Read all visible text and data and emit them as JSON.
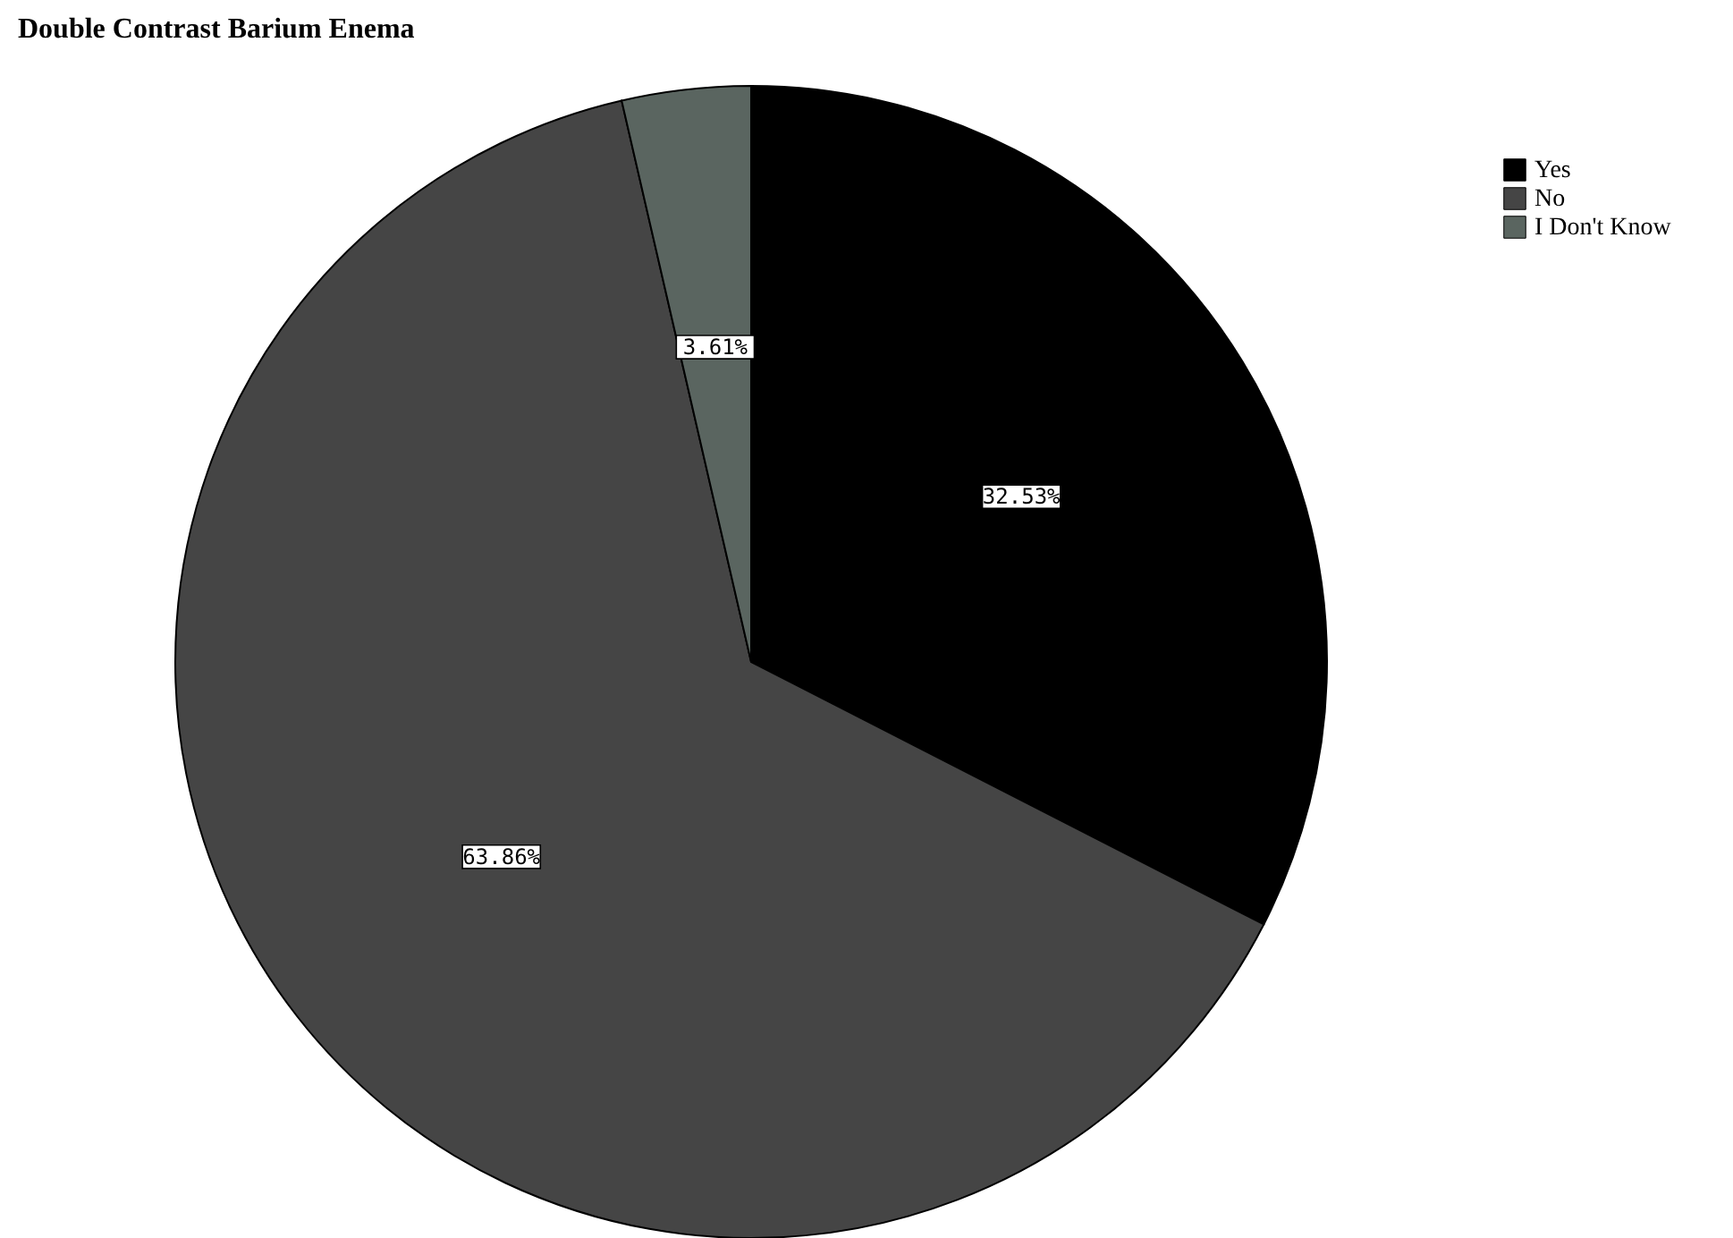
{
  "chart_data": {
    "type": "pie",
    "title": "Double Contrast Barium Enema",
    "categories": [
      "Yes",
      "No",
      "I Don't Know"
    ],
    "values": [
      32.53,
      63.86,
      3.61
    ],
    "value_labels": [
      "32.53%",
      "63.86%",
      "3.61%"
    ],
    "colors": [
      "#000000",
      "#454545",
      "#5a6560"
    ],
    "legend": "top right"
  }
}
